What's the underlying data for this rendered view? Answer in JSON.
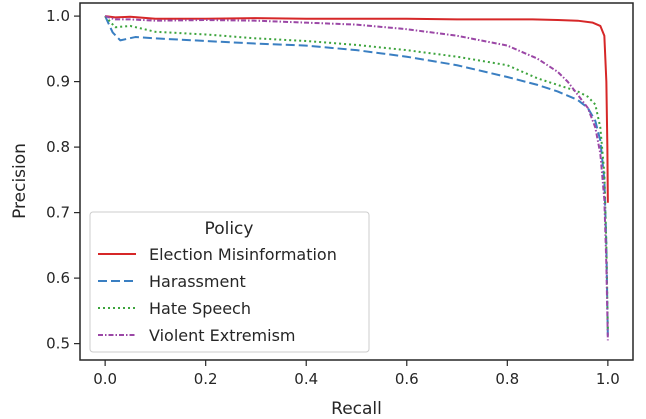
{
  "chart_data": {
    "type": "line",
    "xlabel": "Recall",
    "ylabel": "Precision",
    "xlim": [
      -0.05,
      1.05
    ],
    "ylim": [
      0.475,
      1.02
    ],
    "xticks": [
      0.0,
      0.2,
      0.4,
      0.6,
      0.8,
      1.0
    ],
    "xtick_labels": [
      "0.0",
      "0.2",
      "0.4",
      "0.6",
      "0.8",
      "1.0"
    ],
    "yticks": [
      0.5,
      0.6,
      0.7,
      0.8,
      0.9,
      1.0
    ],
    "ytick_labels": [
      "0.5",
      "0.6",
      "0.7",
      "0.8",
      "0.9",
      "1.0"
    ],
    "grid": false,
    "legend": {
      "title": "Policy",
      "placement": "lower-left"
    },
    "series": [
      {
        "name": "Election Misinformation",
        "color": "#d62728",
        "dash": "solid",
        "points": [
          [
            0.0,
            1.0
          ],
          [
            0.02,
            0.998
          ],
          [
            0.05,
            0.999
          ],
          [
            0.1,
            0.996
          ],
          [
            0.2,
            0.996
          ],
          [
            0.3,
            0.997
          ],
          [
            0.4,
            0.996
          ],
          [
            0.5,
            0.996
          ],
          [
            0.6,
            0.996
          ],
          [
            0.7,
            0.995
          ],
          [
            0.8,
            0.995
          ],
          [
            0.85,
            0.995
          ],
          [
            0.9,
            0.994
          ],
          [
            0.94,
            0.993
          ],
          [
            0.97,
            0.99
          ],
          [
            0.985,
            0.985
          ],
          [
            0.993,
            0.97
          ],
          [
            0.997,
            0.9
          ],
          [
            0.999,
            0.8
          ],
          [
            1.0,
            0.715
          ]
        ]
      },
      {
        "name": "Harassment",
        "color": "#3a7fc2",
        "dash": "dashed",
        "points": [
          [
            0.0,
            1.0
          ],
          [
            0.015,
            0.975
          ],
          [
            0.03,
            0.963
          ],
          [
            0.06,
            0.968
          ],
          [
            0.1,
            0.966
          ],
          [
            0.2,
            0.962
          ],
          [
            0.3,
            0.958
          ],
          [
            0.4,
            0.955
          ],
          [
            0.5,
            0.948
          ],
          [
            0.6,
            0.938
          ],
          [
            0.7,
            0.925
          ],
          [
            0.8,
            0.907
          ],
          [
            0.86,
            0.895
          ],
          [
            0.9,
            0.885
          ],
          [
            0.94,
            0.872
          ],
          [
            0.96,
            0.86
          ],
          [
            0.975,
            0.84
          ],
          [
            0.985,
            0.81
          ],
          [
            0.993,
            0.75
          ],
          [
            0.997,
            0.65
          ],
          [
            1.0,
            0.51
          ]
        ]
      },
      {
        "name": "Hate Speech",
        "color": "#3da43d",
        "dash": "dotted",
        "points": [
          [
            0.0,
            1.0
          ],
          [
            0.02,
            0.983
          ],
          [
            0.05,
            0.985
          ],
          [
            0.1,
            0.976
          ],
          [
            0.2,
            0.972
          ],
          [
            0.3,
            0.966
          ],
          [
            0.4,
            0.962
          ],
          [
            0.5,
            0.956
          ],
          [
            0.6,
            0.948
          ],
          [
            0.7,
            0.938
          ],
          [
            0.8,
            0.925
          ],
          [
            0.86,
            0.905
          ],
          [
            0.9,
            0.895
          ],
          [
            0.94,
            0.885
          ],
          [
            0.96,
            0.877
          ],
          [
            0.975,
            0.865
          ],
          [
            0.985,
            0.83
          ],
          [
            0.993,
            0.76
          ],
          [
            0.997,
            0.65
          ],
          [
            1.0,
            0.52
          ]
        ]
      },
      {
        "name": "Violent Extremism",
        "color": "#9b47a6",
        "dash": "dashdot",
        "points": [
          [
            0.0,
            1.0
          ],
          [
            0.02,
            0.995
          ],
          [
            0.05,
            0.995
          ],
          [
            0.1,
            0.993
          ],
          [
            0.2,
            0.994
          ],
          [
            0.3,
            0.993
          ],
          [
            0.4,
            0.99
          ],
          [
            0.5,
            0.987
          ],
          [
            0.6,
            0.98
          ],
          [
            0.7,
            0.97
          ],
          [
            0.8,
            0.955
          ],
          [
            0.86,
            0.935
          ],
          [
            0.9,
            0.915
          ],
          [
            0.92,
            0.9
          ],
          [
            0.94,
            0.88
          ],
          [
            0.96,
            0.86
          ],
          [
            0.975,
            0.83
          ],
          [
            0.985,
            0.79
          ],
          [
            0.993,
            0.72
          ],
          [
            0.997,
            0.62
          ],
          [
            1.0,
            0.505
          ]
        ]
      }
    ]
  }
}
